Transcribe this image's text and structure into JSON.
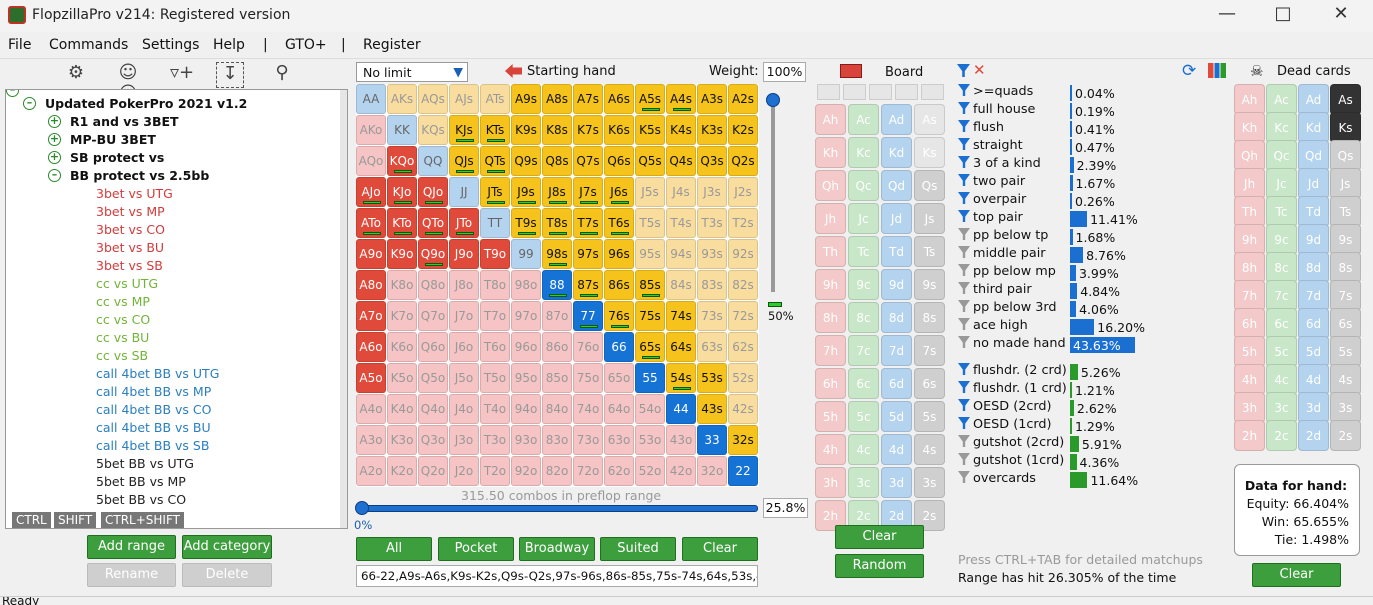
{
  "window": {
    "title": "FlopzillaPro v214: Registered version"
  },
  "menu": [
    "File",
    "Commands",
    "Settings",
    "Help",
    "|",
    "GTO+",
    "|",
    "Register"
  ],
  "tree": {
    "root": "Updated PokerPro 2021 v1.2",
    "groups": [
      "R1 and vs 3BET",
      "MP-BU 3BET",
      "SB protect vs",
      "BB protect vs 2.5bb"
    ],
    "items": [
      {
        "label": "3bet vs UTG",
        "color": "#d23b3b"
      },
      {
        "label": "3bet vs MP",
        "color": "#d23b3b"
      },
      {
        "label": "3bet vs CO",
        "color": "#d23b3b"
      },
      {
        "label": "3bet vs BU",
        "color": "#d23b3b"
      },
      {
        "label": "3bet vs SB",
        "color": "#d23b3b"
      },
      {
        "label": "cc vs UTG",
        "color": "#72b338"
      },
      {
        "label": "cc vs MP",
        "color": "#72b338"
      },
      {
        "label": "cc vs CO",
        "color": "#72b338"
      },
      {
        "label": "cc vs BU",
        "color": "#72b338"
      },
      {
        "label": "cc vs SB",
        "color": "#72b338"
      },
      {
        "label": "call 4bet BB vs UTG",
        "color": "#2a7fbf"
      },
      {
        "label": "call 4bet BB vs MP",
        "color": "#2a7fbf"
      },
      {
        "label": "call 4bet BB vs CO",
        "color": "#2a7fbf"
      },
      {
        "label": "call 4bet BB vs BU",
        "color": "#2a7fbf"
      },
      {
        "label": "call 4bet BB vs SB",
        "color": "#2a7fbf"
      },
      {
        "label": "5bet BB vs UTG",
        "color": "#222222"
      },
      {
        "label": "5bet BB vs MP",
        "color": "#222222"
      },
      {
        "label": "5bet BB vs CO",
        "color": "#222222"
      }
    ],
    "modifiers": [
      "CTRL",
      "SHIFT",
      "CTRL+SHIFT"
    ]
  },
  "left_buttons": {
    "add_range": "Add range",
    "add_category": "Add category",
    "rename": "Rename",
    "delete": "Delete"
  },
  "range": {
    "limit_select": "No limit",
    "starting_hand": "Starting hand",
    "weight_label": "Weight:",
    "weight_value": "100%",
    "weight_slider_level": "50%",
    "combos_text": "315.50 combos in preflop range",
    "slider_min": "0%",
    "percent_value": "25.8%",
    "buttons": [
      "All",
      "Pocket",
      "Broadway",
      "Suited",
      "Clear"
    ],
    "range_text": "66-22,A9s-A6s,K9s-K2s,Q9s-Q2s,97s-96s,86s-85s,75s-74s,64s,53s,4"
  },
  "board": {
    "title": "Board",
    "clear": "Clear",
    "random": "Random"
  },
  "stats": {
    "made": [
      {
        "label": ">=quads",
        "value": "0.04%",
        "pct": 0.04
      },
      {
        "label": "full house",
        "value": "0.19%",
        "pct": 0.19
      },
      {
        "label": "flush",
        "value": "0.41%",
        "pct": 0.41
      },
      {
        "label": "straight",
        "value": "0.47%",
        "pct": 0.47
      },
      {
        "label": "3 of a kind",
        "value": "2.39%",
        "pct": 2.39
      },
      {
        "label": "two pair",
        "value": "1.67%",
        "pct": 1.67
      },
      {
        "label": "overpair",
        "value": "0.26%",
        "pct": 0.26
      },
      {
        "label": "top pair",
        "value": "11.41%",
        "pct": 11.41
      },
      {
        "label": "pp below tp",
        "value": "1.68%",
        "pct": 1.68
      },
      {
        "label": "middle pair",
        "value": "8.76%",
        "pct": 8.76
      },
      {
        "label": "pp below mp",
        "value": "3.99%",
        "pct": 3.99
      },
      {
        "label": "third pair",
        "value": "4.84%",
        "pct": 4.84
      },
      {
        "label": "pp below 3rd",
        "value": "4.06%",
        "pct": 4.06
      },
      {
        "label": "ace high",
        "value": "16.20%",
        "pct": 16.2
      },
      {
        "label": "no made hand",
        "value": "43.63%",
        "pct": 43.63
      }
    ],
    "draws": [
      {
        "label": "flushdr. (2 crd)",
        "value": "5.26%",
        "pct": 5.26
      },
      {
        "label": "flushdr. (1 crd)",
        "value": "1.21%",
        "pct": 1.21
      },
      {
        "label": "OESD (2crd)",
        "value": "2.62%",
        "pct": 2.62
      },
      {
        "label": "OESD (1crd)",
        "value": "1.29%",
        "pct": 1.29
      },
      {
        "label": "gutshot (2crd)",
        "value": "5.91%",
        "pct": 5.91
      },
      {
        "label": "gutshot (1crd)",
        "value": "4.36%",
        "pct": 4.36
      },
      {
        "label": "overcards",
        "value": "11.64%",
        "pct": 11.64
      }
    ],
    "hint": "Press CTRL+TAB for detailed matchups",
    "hit_text": "Range has hit 26.305% of the time"
  },
  "dead": {
    "title": "Dead cards",
    "data_title": "Data for hand:",
    "equity": "Equity: 66.404%",
    "win": "Win: 65.655%",
    "tie": "Tie: 1.498%",
    "clear": "Clear"
  },
  "status": "Ready"
}
